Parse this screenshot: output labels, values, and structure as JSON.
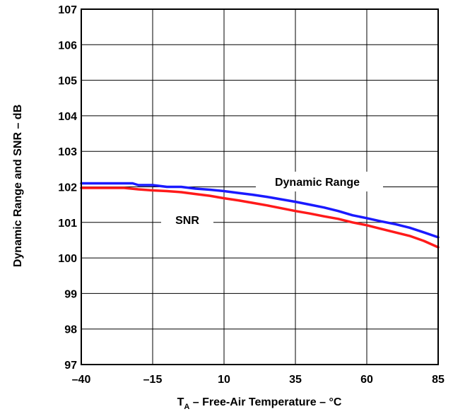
{
  "chart_data": {
    "type": "line",
    "xlabel_main": "T",
    "xlabel_sub": "A",
    "xlabel_rest": " – Free-Air Temperature – °C",
    "ylabel": "Dynamic Range and SNR – dB",
    "xlim": [
      -40,
      85
    ],
    "ylim": [
      97,
      107
    ],
    "xticks": [
      -40,
      -15,
      10,
      35,
      60,
      85
    ],
    "xtick_labels": [
      "–40",
      "–15",
      "10",
      "35",
      "60",
      "85"
    ],
    "yticks": [
      97,
      98,
      99,
      100,
      101,
      102,
      103,
      104,
      105,
      106,
      107
    ],
    "ytick_labels": [
      "97",
      "98",
      "99",
      "100",
      "101",
      "102",
      "103",
      "104",
      "105",
      "106",
      "107"
    ],
    "grid": true,
    "series": [
      {
        "name": "Dynamic Range",
        "color": "#1a1aff",
        "x": [
          -40,
          -30,
          -22,
          -20,
          -15,
          -10,
          -5,
          0,
          5,
          10,
          15,
          20,
          25,
          30,
          35,
          40,
          45,
          50,
          55,
          60,
          65,
          70,
          75,
          80,
          85
        ],
        "y": [
          102.1,
          102.1,
          102.1,
          102.05,
          102.05,
          102.0,
          102.0,
          101.95,
          101.92,
          101.88,
          101.83,
          101.78,
          101.72,
          101.65,
          101.58,
          101.5,
          101.42,
          101.32,
          101.2,
          101.12,
          101.03,
          100.95,
          100.85,
          100.72,
          100.58
        ]
      },
      {
        "name": "SNR",
        "color": "#ff1a1a",
        "x": [
          -40,
          -30,
          -25,
          -20,
          -15,
          -10,
          -5,
          0,
          5,
          10,
          15,
          20,
          25,
          30,
          35,
          40,
          45,
          50,
          55,
          60,
          65,
          70,
          75,
          80,
          85
        ],
        "y": [
          101.97,
          101.97,
          101.97,
          101.93,
          101.9,
          101.88,
          101.85,
          101.8,
          101.75,
          101.68,
          101.62,
          101.55,
          101.48,
          101.4,
          101.32,
          101.25,
          101.17,
          101.1,
          101.0,
          100.92,
          100.82,
          100.72,
          100.62,
          100.48,
          100.3
        ]
      }
    ],
    "annotations": [
      {
        "text": "Dynamic Range",
        "series": 0
      },
      {
        "text": "SNR",
        "series": 1
      }
    ]
  }
}
